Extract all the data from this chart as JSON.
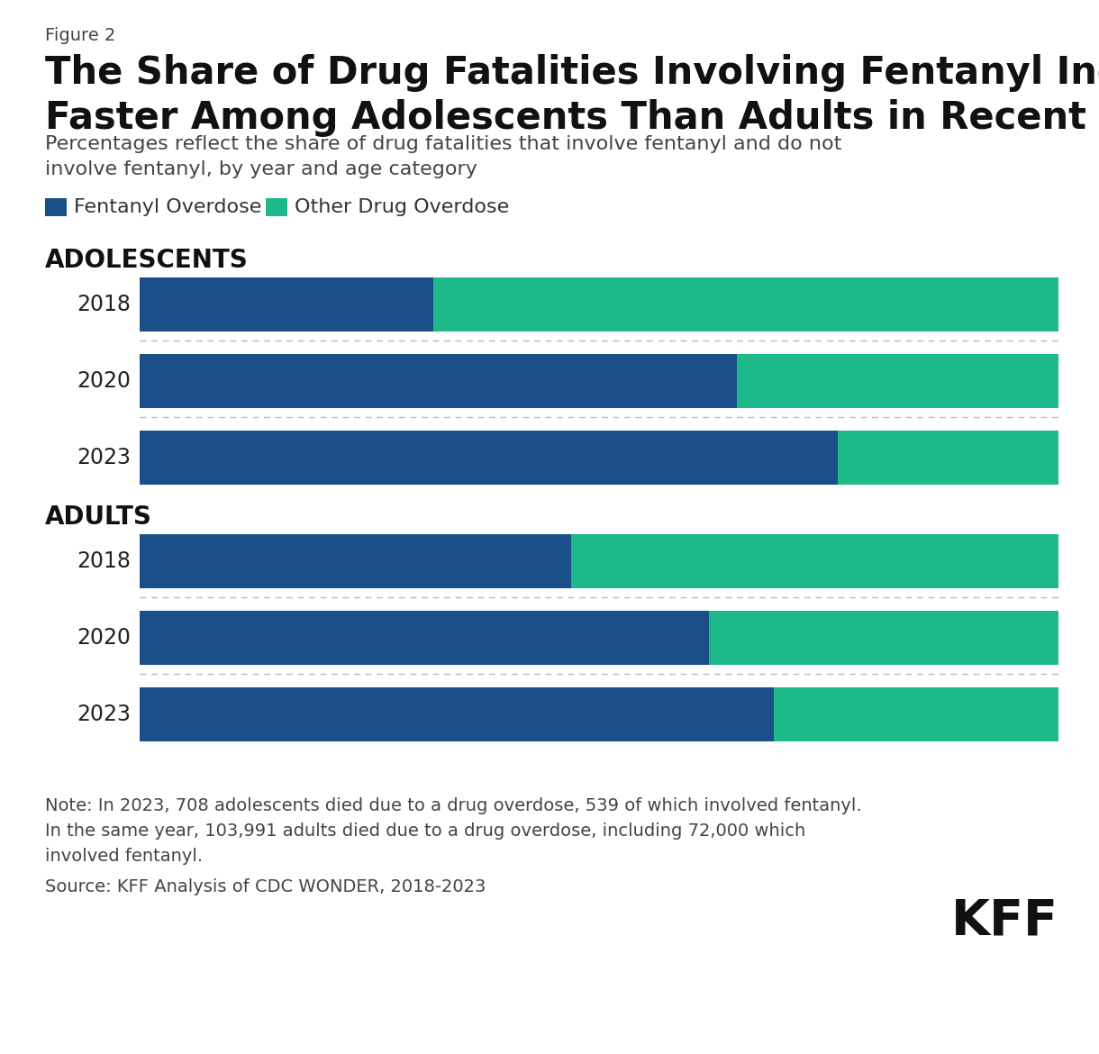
{
  "figure_label": "Figure 2",
  "title": "The Share of Drug Fatalities Involving Fentanyl Increased\nFaster Among Adolescents Than Adults in Recent Years",
  "subtitle": "Percentages reflect the share of drug fatalities that involve fentanyl and do not\ninvolve fentanyl, by year and age category",
  "legend_items": [
    "Fentanyl Overdose",
    "Other Drug Overdose"
  ],
  "fentanyl_color": "#1a4f8a",
  "other_color": "#1db98a",
  "adolescents_label": "ADOLESCENTS",
  "adults_label": "ADULTS",
  "adolescents": {
    "years": [
      "2018",
      "2020",
      "2023"
    ],
    "fentanyl": [
      32,
      65,
      76
    ],
    "other": [
      68,
      35,
      24
    ]
  },
  "adults": {
    "years": [
      "2018",
      "2020",
      "2023"
    ],
    "fentanyl": [
      47,
      62,
      69
    ],
    "other": [
      53,
      38,
      31
    ]
  },
  "note_text": "Note: In 2023, 708 adolescents died due to a drug overdose, 539 of which involved fentanyl.\nIn the same year, 103,991 adults died due to a drug overdose, including 72,000 which\ninvolved fentanyl.",
  "source_text": "Source: KFF Analysis of CDC WONDER, 2018-2023",
  "kff_text": "KFF",
  "background_color": "#ffffff",
  "bar_label_fontsize": 17,
  "year_label_fontsize": 17,
  "section_label_fontsize": 20,
  "figure_label_fontsize": 14,
  "title_fontsize": 30,
  "subtitle_fontsize": 16,
  "legend_fontsize": 16,
  "note_fontsize": 14,
  "source_fontsize": 14,
  "kff_fontsize": 40
}
